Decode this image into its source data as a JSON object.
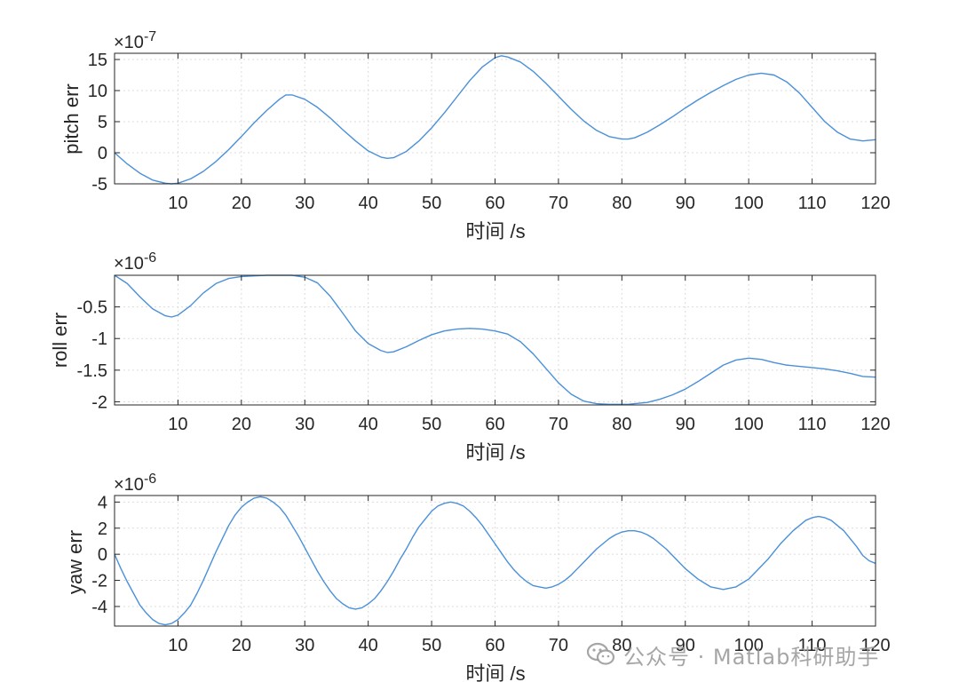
{
  "watermark": {
    "text": "公众号 · Matlab科研助手",
    "icon": "wechat-icon"
  },
  "chart_data": [
    {
      "type": "line",
      "xlabel": "时间 /s",
      "ylabel": "pitch err",
      "exponent": "-7",
      "xlim": [
        0,
        120
      ],
      "ylim": [
        -5,
        16
      ],
      "xticks": [
        10,
        20,
        30,
        40,
        50,
        60,
        70,
        80,
        90,
        100,
        110,
        120
      ],
      "yticks": [
        -5,
        0,
        5,
        10,
        15
      ],
      "yticklabels": [
        "-5",
        "0",
        "5",
        "10",
        "15"
      ],
      "grid": true,
      "color": "#4a90d9",
      "x": [
        0,
        2,
        4,
        6,
        8,
        9,
        10,
        12,
        14,
        16,
        18,
        20,
        22,
        24,
        26,
        27,
        28,
        30,
        32,
        34,
        36,
        38,
        40,
        42,
        43,
        44,
        46,
        48,
        50,
        52,
        54,
        56,
        58,
        60,
        61,
        62,
        64,
        66,
        68,
        70,
        72,
        74,
        76,
        78,
        80,
        81,
        82,
        84,
        86,
        88,
        90,
        92,
        94,
        96,
        98,
        100,
        102,
        104,
        106,
        108,
        110,
        112,
        114,
        116,
        118,
        120
      ],
      "y": [
        0,
        -1.8,
        -3.3,
        -4.4,
        -4.9,
        -5.0,
        -4.9,
        -4.2,
        -3.0,
        -1.4,
        0.5,
        2.6,
        4.8,
        6.8,
        8.6,
        9.3,
        9.3,
        8.6,
        7.3,
        5.6,
        3.7,
        1.9,
        0.3,
        -0.7,
        -0.9,
        -0.8,
        0.2,
        1.9,
        4.0,
        6.4,
        9.0,
        11.6,
        13.8,
        15.3,
        15.6,
        15.4,
        14.6,
        13.1,
        11.2,
        9.1,
        7.0,
        5.1,
        3.6,
        2.6,
        2.2,
        2.2,
        2.4,
        3.3,
        4.5,
        5.8,
        7.2,
        8.5,
        9.7,
        10.8,
        11.8,
        12.5,
        12.8,
        12.5,
        11.4,
        9.6,
        7.3,
        5.0,
        3.3,
        2.2,
        1.9,
        2.1
      ]
    },
    {
      "type": "line",
      "xlabel": "时间 /s",
      "ylabel": "roll err",
      "exponent": "-6",
      "xlim": [
        0,
        120
      ],
      "ylim": [
        -2.05,
        0
      ],
      "xticks": [
        10,
        20,
        30,
        40,
        50,
        60,
        70,
        80,
        90,
        100,
        110,
        120
      ],
      "yticks": [
        -2,
        -1.5,
        -1,
        -0.5
      ],
      "yticklabels": [
        "-2",
        "-1.5",
        "-1",
        "-0.5"
      ],
      "grid": true,
      "color": "#4a90d9",
      "x": [
        0,
        2,
        4,
        6,
        8,
        9,
        10,
        12,
        14,
        16,
        18,
        20,
        22,
        24,
        26,
        28,
        30,
        32,
        34,
        36,
        38,
        40,
        42,
        43,
        44,
        46,
        48,
        50,
        52,
        54,
        56,
        58,
        60,
        62,
        64,
        66,
        68,
        70,
        72,
        74,
        76,
        78,
        80,
        81,
        82,
        84,
        86,
        88,
        90,
        92,
        94,
        96,
        98,
        100,
        102,
        104,
        106,
        108,
        110,
        112,
        114,
        116,
        118,
        120
      ],
      "y": [
        0,
        -0.13,
        -0.34,
        -0.53,
        -0.64,
        -0.66,
        -0.63,
        -0.48,
        -0.28,
        -0.13,
        -0.05,
        -0.02,
        -0.01,
        0,
        0,
        0,
        -0.03,
        -0.12,
        -0.33,
        -0.6,
        -0.88,
        -1.08,
        -1.19,
        -1.22,
        -1.21,
        -1.13,
        -1.03,
        -0.94,
        -0.88,
        -0.85,
        -0.84,
        -0.85,
        -0.88,
        -0.93,
        -1.05,
        -1.24,
        -1.47,
        -1.7,
        -1.88,
        -1.99,
        -2.03,
        -2.04,
        -2.04,
        -2.04,
        -2.03,
        -2.01,
        -1.96,
        -1.89,
        -1.8,
        -1.68,
        -1.55,
        -1.42,
        -1.34,
        -1.31,
        -1.33,
        -1.38,
        -1.42,
        -1.44,
        -1.46,
        -1.48,
        -1.51,
        -1.55,
        -1.6,
        -1.61
      ]
    },
    {
      "type": "line",
      "xlabel": "时间 /s",
      "ylabel": "yaw err",
      "exponent": "-6",
      "xlim": [
        0,
        120
      ],
      "ylim": [
        -5.5,
        4.5
      ],
      "xticks": [
        10,
        20,
        30,
        40,
        50,
        60,
        70,
        80,
        90,
        100,
        110,
        120
      ],
      "yticks": [
        -4,
        -2,
        0,
        2,
        4
      ],
      "yticklabels": [
        "-4",
        "-2",
        "0",
        "2",
        "4"
      ],
      "grid": true,
      "color": "#4a90d9",
      "x": [
        0,
        1,
        2,
        3,
        4,
        5,
        6,
        7,
        8,
        9,
        10,
        11,
        12,
        13,
        14,
        15,
        16,
        17,
        18,
        19,
        20,
        21,
        22,
        23,
        24,
        25,
        26,
        27,
        28,
        29,
        30,
        31,
        32,
        33,
        34,
        35,
        36,
        37,
        38,
        39,
        40,
        41,
        42,
        43,
        44,
        45,
        46,
        47,
        48,
        49,
        50,
        51,
        52,
        53,
        54,
        55,
        56,
        57,
        58,
        59,
        60,
        61,
        62,
        63,
        64,
        65,
        66,
        67,
        68,
        69,
        70,
        71,
        72,
        73,
        74,
        75,
        76,
        77,
        78,
        79,
        80,
        81,
        82,
        83,
        84,
        85,
        86,
        87,
        88,
        89,
        90,
        91,
        92,
        93,
        94,
        95,
        96,
        97,
        98,
        99,
        100,
        101,
        102,
        103,
        104,
        105,
        106,
        107,
        108,
        109,
        110,
        111,
        112,
        113,
        114,
        115,
        116,
        117,
        118,
        119,
        120
      ],
      "y": [
        0,
        -1.1,
        -2.1,
        -3.0,
        -3.9,
        -4.5,
        -5.0,
        -5.3,
        -5.4,
        -5.3,
        -5.0,
        -4.5,
        -3.9,
        -3.0,
        -2.0,
        -0.9,
        0.2,
        1.2,
        2.2,
        3.0,
        3.6,
        4.0,
        4.3,
        4.4,
        4.3,
        4.0,
        3.6,
        3.0,
        2.2,
        1.4,
        0.5,
        -0.4,
        -1.3,
        -2.1,
        -2.8,
        -3.4,
        -3.8,
        -4.1,
        -4.2,
        -4.1,
        -3.8,
        -3.4,
        -2.8,
        -2.1,
        -1.3,
        -0.4,
        0.4,
        1.3,
        2.1,
        2.7,
        3.3,
        3.7,
        3.9,
        4.0,
        3.9,
        3.7,
        3.3,
        2.8,
        2.2,
        1.5,
        0.8,
        0.1,
        -0.6,
        -1.2,
        -1.7,
        -2.1,
        -2.4,
        -2.5,
        -2.6,
        -2.5,
        -2.3,
        -2.0,
        -1.6,
        -1.1,
        -0.6,
        -0.1,
        0.4,
        0.8,
        1.2,
        1.5,
        1.7,
        1.8,
        1.8,
        1.7,
        1.5,
        1.2,
        0.8,
        0.4,
        -0.1,
        -0.6,
        -1.1,
        -1.5,
        -1.9,
        -2.2,
        -2.5,
        -2.6,
        -2.7,
        -2.6,
        -2.5,
        -2.2,
        -1.9,
        -1.4,
        -0.9,
        -0.4,
        0.2,
        0.8,
        1.3,
        1.8,
        2.2,
        2.6,
        2.8,
        2.9,
        2.8,
        2.6,
        2.2,
        1.8,
        1.2,
        0.6,
        -0.1,
        -0.5,
        -0.7
      ]
    }
  ]
}
